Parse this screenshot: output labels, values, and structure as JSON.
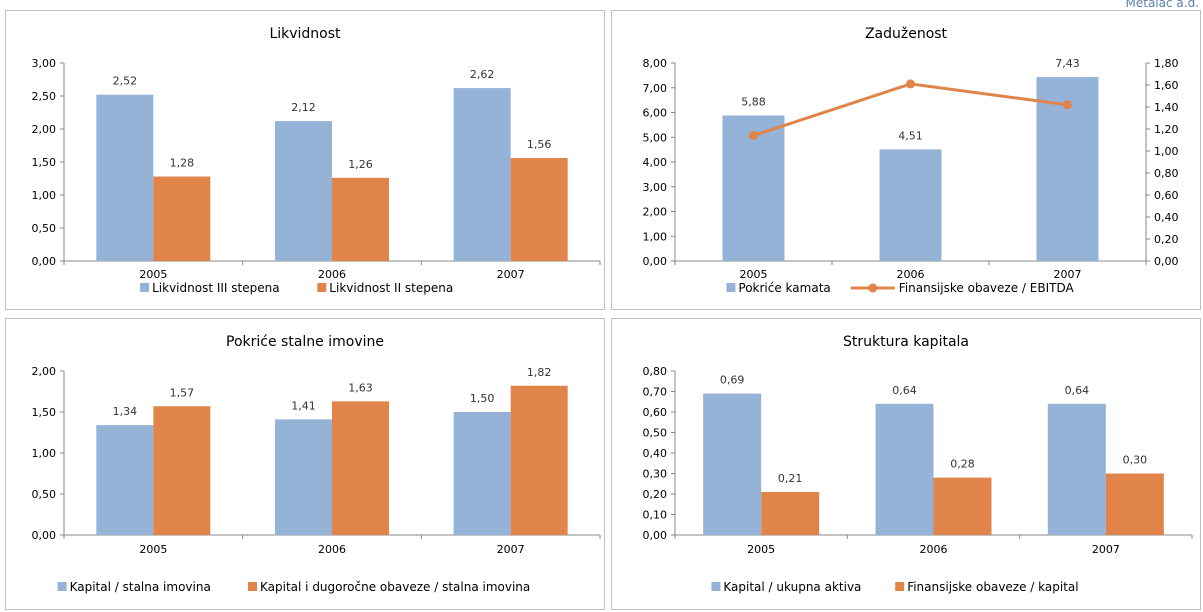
{
  "corner_label": "Metalac a.d.",
  "colors": {
    "blue": "#95B3D7",
    "orange": "#E0844A"
  },
  "chart_data": [
    {
      "type": "bar",
      "title": "Likvidnost",
      "categories": [
        "2005",
        "2006",
        "2007"
      ],
      "ylim": [
        0,
        3
      ],
      "yticks": [
        "0,00",
        "0,50",
        "1,00",
        "1,50",
        "2,00",
        "2,50",
        "3,00"
      ],
      "series": [
        {
          "name": "Likvidnost III stepena",
          "values": [
            2.52,
            2.12,
            2.62
          ],
          "labels": [
            "2,52",
            "2,12",
            "2,62"
          ],
          "color": "#95B3D7"
        },
        {
          "name": "Likvidnost II stepena",
          "values": [
            1.28,
            1.26,
            1.56
          ],
          "labels": [
            "1,28",
            "1,26",
            "1,56"
          ],
          "color": "#E0844A"
        }
      ],
      "legend": "bottom"
    },
    {
      "type": "bar+line",
      "title": "Zaduženost",
      "categories": [
        "2005",
        "2006",
        "2007"
      ],
      "ylim": [
        0,
        8
      ],
      "yticks": [
        "0,00",
        "1,00",
        "2,00",
        "3,00",
        "4,00",
        "5,00",
        "6,00",
        "7,00",
        "8,00"
      ],
      "y2lim": [
        0,
        1.8
      ],
      "y2ticks": [
        "0,00",
        "0,20",
        "0,40",
        "0,60",
        "0,80",
        "1,00",
        "1,20",
        "1,40",
        "1,60",
        "1,80"
      ],
      "series": [
        {
          "name": "Pokriće kamata",
          "type": "bar",
          "axis": "left",
          "values": [
            5.88,
            4.51,
            7.43
          ],
          "labels": [
            "5,88",
            "4,51",
            "7,43"
          ],
          "color": "#95B3D7"
        },
        {
          "name": "Finansijske obaveze / EBITDA",
          "type": "line",
          "axis": "right",
          "values": [
            1.14,
            1.61,
            1.42
          ],
          "color": "#E0844A"
        }
      ],
      "legend": "bottom"
    },
    {
      "type": "bar",
      "title": "Pokriće stalne imovine",
      "categories": [
        "2005",
        "2006",
        "2007"
      ],
      "ylim": [
        0,
        2
      ],
      "yticks": [
        "0,00",
        "0,50",
        "1,00",
        "1,50",
        "2,00"
      ],
      "series": [
        {
          "name": "Kapital / stalna imovina",
          "values": [
            1.34,
            1.41,
            1.5
          ],
          "labels": [
            "1,34",
            "1,41",
            "1,50"
          ],
          "color": "#95B3D7"
        },
        {
          "name": "Kapital i dugoročne obaveze / stalna imovina",
          "values": [
            1.57,
            1.63,
            1.82
          ],
          "labels": [
            "1,57",
            "1,63",
            "1,82"
          ],
          "color": "#E0844A"
        }
      ],
      "legend": "bottom"
    },
    {
      "type": "bar",
      "title": "Struktura kapitala",
      "categories": [
        "2005",
        "2006",
        "2007"
      ],
      "ylim": [
        0,
        0.8
      ],
      "yticks": [
        "0,00",
        "0,10",
        "0,20",
        "0,30",
        "0,40",
        "0,50",
        "0,60",
        "0,70",
        "0,80"
      ],
      "series": [
        {
          "name": "Kapital / ukupna aktiva",
          "values": [
            0.69,
            0.64,
            0.64
          ],
          "labels": [
            "0,69",
            "0,64",
            "0,64"
          ],
          "color": "#95B3D7"
        },
        {
          "name": "Finansijske obaveze / kapital",
          "values": [
            0.21,
            0.28,
            0.3
          ],
          "labels": [
            "0,21",
            "0,28",
            "0,30"
          ],
          "color": "#E0844A"
        }
      ],
      "legend": "bottom"
    }
  ]
}
